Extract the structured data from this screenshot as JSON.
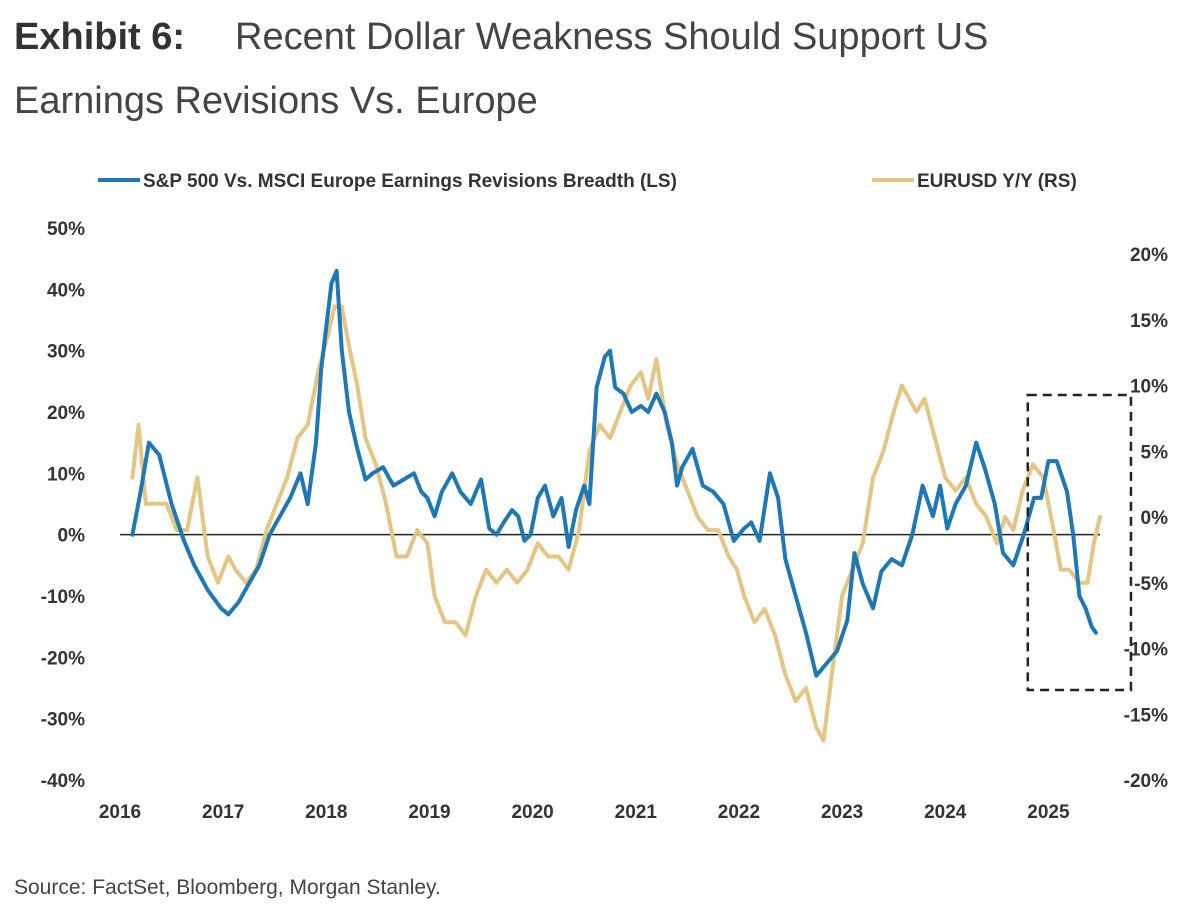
{
  "header": {
    "exhibit_label": "Exhibit 6:",
    "title_line1": "Recent Dollar Weakness Should Support US",
    "title_line2": "Earnings Revisions Vs. Europe"
  },
  "source_note": "Source: FactSet, Bloomberg, Morgan Stanley.",
  "chart_data": {
    "type": "line",
    "legend_position": "top",
    "grid": false,
    "x_ticks": [
      "2016",
      "2017",
      "2018",
      "2019",
      "2020",
      "2021",
      "2022",
      "2023",
      "2024",
      "2025"
    ],
    "xlim": [
      2016.0,
      2025.5
    ],
    "y_left": {
      "ticks": [
        "50%",
        "40%",
        "30%",
        "20%",
        "10%",
        "0%",
        "-10%",
        "-20%",
        "-30%",
        "-40%"
      ],
      "ylim": [
        -40,
        50
      ]
    },
    "y_right": {
      "ticks": [
        "20%",
        "15%",
        "10%",
        "5%",
        "0%",
        "-5%",
        "-10%",
        "-15%",
        "-20%"
      ],
      "ylim": [
        -20,
        20
      ]
    },
    "annotation": "dashed box highlighting 2024.8 to 2025.3",
    "series": [
      {
        "name": "S&P 500 Vs. MSCI Europe Earnings Revisions Breadth (LS)",
        "axis": "left",
        "color": "#1f78b4",
        "points": [
          [
            2016.12,
            0
          ],
          [
            2016.2,
            7
          ],
          [
            2016.28,
            15
          ],
          [
            2016.38,
            13
          ],
          [
            2016.5,
            5
          ],
          [
            2016.62,
            -1
          ],
          [
            2016.72,
            -5
          ],
          [
            2016.85,
            -9
          ],
          [
            2016.98,
            -12
          ],
          [
            2017.05,
            -13
          ],
          [
            2017.15,
            -11
          ],
          [
            2017.25,
            -8
          ],
          [
            2017.35,
            -5
          ],
          [
            2017.45,
            0
          ],
          [
            2017.55,
            3
          ],
          [
            2017.65,
            6
          ],
          [
            2017.75,
            10
          ],
          [
            2017.82,
            5
          ],
          [
            2017.9,
            15
          ],
          [
            2017.95,
            27
          ],
          [
            2018.05,
            41
          ],
          [
            2018.1,
            43
          ],
          [
            2018.15,
            30
          ],
          [
            2018.22,
            20
          ],
          [
            2018.3,
            14
          ],
          [
            2018.38,
            9
          ],
          [
            2018.45,
            10
          ],
          [
            2018.55,
            11
          ],
          [
            2018.65,
            8
          ],
          [
            2018.75,
            9
          ],
          [
            2018.85,
            10
          ],
          [
            2018.92,
            7
          ],
          [
            2018.98,
            6
          ],
          [
            2019.05,
            3
          ],
          [
            2019.12,
            7
          ],
          [
            2019.22,
            10
          ],
          [
            2019.3,
            7
          ],
          [
            2019.4,
            5
          ],
          [
            2019.5,
            9
          ],
          [
            2019.58,
            1
          ],
          [
            2019.65,
            0
          ],
          [
            2019.72,
            2
          ],
          [
            2019.8,
            4
          ],
          [
            2019.86,
            3
          ],
          [
            2019.92,
            -1
          ],
          [
            2019.98,
            0
          ],
          [
            2020.05,
            6
          ],
          [
            2020.12,
            8
          ],
          [
            2020.2,
            3
          ],
          [
            2020.28,
            6
          ],
          [
            2020.35,
            -2
          ],
          [
            2020.42,
            4
          ],
          [
            2020.5,
            8
          ],
          [
            2020.55,
            5
          ],
          [
            2020.62,
            24
          ],
          [
            2020.7,
            29
          ],
          [
            2020.75,
            30
          ],
          [
            2020.8,
            24
          ],
          [
            2020.88,
            23
          ],
          [
            2020.96,
            20
          ],
          [
            2021.05,
            21
          ],
          [
            2021.12,
            20
          ],
          [
            2021.2,
            23
          ],
          [
            2021.28,
            20
          ],
          [
            2021.35,
            15
          ],
          [
            2021.4,
            8
          ],
          [
            2021.45,
            11
          ],
          [
            2021.55,
            14
          ],
          [
            2021.65,
            8
          ],
          [
            2021.75,
            7
          ],
          [
            2021.85,
            5
          ],
          [
            2021.95,
            -1
          ],
          [
            2022.05,
            1
          ],
          [
            2022.12,
            2
          ],
          [
            2022.2,
            -1
          ],
          [
            2022.3,
            10
          ],
          [
            2022.38,
            6
          ],
          [
            2022.45,
            -4
          ],
          [
            2022.55,
            -10
          ],
          [
            2022.65,
            -16
          ],
          [
            2022.75,
            -23
          ],
          [
            2022.85,
            -21
          ],
          [
            2022.95,
            -19
          ],
          [
            2023.05,
            -14
          ],
          [
            2023.12,
            -3
          ],
          [
            2023.2,
            -8
          ],
          [
            2023.3,
            -12
          ],
          [
            2023.38,
            -6
          ],
          [
            2023.48,
            -4
          ],
          [
            2023.58,
            -5
          ],
          [
            2023.68,
            0
          ],
          [
            2023.78,
            8
          ],
          [
            2023.88,
            3
          ],
          [
            2023.95,
            8
          ],
          [
            2024.02,
            1
          ],
          [
            2024.1,
            5
          ],
          [
            2024.2,
            8
          ],
          [
            2024.3,
            15
          ],
          [
            2024.38,
            11
          ],
          [
            2024.48,
            5
          ],
          [
            2024.56,
            -3
          ],
          [
            2024.66,
            -5
          ],
          [
            2024.76,
            0
          ],
          [
            2024.86,
            6
          ],
          [
            2024.93,
            6
          ],
          [
            2025.0,
            12
          ],
          [
            2025.08,
            12
          ],
          [
            2025.18,
            7
          ],
          [
            2025.24,
            0
          ],
          [
            2025.3,
            -10
          ],
          [
            2025.36,
            -12
          ],
          [
            2025.42,
            -15
          ],
          [
            2025.46,
            -16
          ]
        ]
      },
      {
        "name": "EURUSD Y/Y (RS)",
        "axis": "right",
        "color": "#e3c585",
        "points": [
          [
            2016.12,
            3
          ],
          [
            2016.18,
            7
          ],
          [
            2016.25,
            1
          ],
          [
            2016.35,
            1
          ],
          [
            2016.45,
            1
          ],
          [
            2016.55,
            -1
          ],
          [
            2016.65,
            -1
          ],
          [
            2016.75,
            3
          ],
          [
            2016.85,
            -3
          ],
          [
            2016.95,
            -5
          ],
          [
            2017.05,
            -3
          ],
          [
            2017.12,
            -4
          ],
          [
            2017.22,
            -5
          ],
          [
            2017.32,
            -4
          ],
          [
            2017.42,
            -1
          ],
          [
            2017.52,
            1
          ],
          [
            2017.62,
            3
          ],
          [
            2017.72,
            6
          ],
          [
            2017.82,
            7
          ],
          [
            2017.92,
            11
          ],
          [
            2018.02,
            14
          ],
          [
            2018.08,
            16
          ],
          [
            2018.15,
            16
          ],
          [
            2018.22,
            13
          ],
          [
            2018.3,
            10
          ],
          [
            2018.38,
            6
          ],
          [
            2018.48,
            4
          ],
          [
            2018.58,
            1
          ],
          [
            2018.68,
            -3
          ],
          [
            2018.78,
            -3
          ],
          [
            2018.88,
            -1
          ],
          [
            2018.98,
            -2
          ],
          [
            2019.05,
            -6
          ],
          [
            2019.15,
            -8
          ],
          [
            2019.25,
            -8
          ],
          [
            2019.35,
            -9
          ],
          [
            2019.45,
            -6
          ],
          [
            2019.55,
            -4
          ],
          [
            2019.65,
            -5
          ],
          [
            2019.75,
            -4
          ],
          [
            2019.85,
            -5
          ],
          [
            2019.95,
            -4
          ],
          [
            2020.05,
            -2
          ],
          [
            2020.15,
            -3
          ],
          [
            2020.25,
            -3
          ],
          [
            2020.35,
            -4
          ],
          [
            2020.45,
            -1
          ],
          [
            2020.55,
            5
          ],
          [
            2020.65,
            7
          ],
          [
            2020.75,
            6
          ],
          [
            2020.85,
            8
          ],
          [
            2020.95,
            10
          ],
          [
            2021.05,
            11
          ],
          [
            2021.12,
            9
          ],
          [
            2021.2,
            12
          ],
          [
            2021.3,
            7
          ],
          [
            2021.4,
            4
          ],
          [
            2021.5,
            2
          ],
          [
            2021.6,
            0
          ],
          [
            2021.7,
            -1
          ],
          [
            2021.8,
            -1
          ],
          [
            2021.9,
            -3
          ],
          [
            2021.98,
            -4
          ],
          [
            2022.05,
            -6
          ],
          [
            2022.15,
            -8
          ],
          [
            2022.25,
            -7
          ],
          [
            2022.35,
            -9
          ],
          [
            2022.45,
            -12
          ],
          [
            2022.55,
            -14
          ],
          [
            2022.65,
            -13
          ],
          [
            2022.75,
            -16
          ],
          [
            2022.82,
            -17
          ],
          [
            2022.9,
            -12
          ],
          [
            2023.0,
            -6
          ],
          [
            2023.1,
            -4
          ],
          [
            2023.2,
            -2
          ],
          [
            2023.3,
            3
          ],
          [
            2023.4,
            5
          ],
          [
            2023.5,
            8
          ],
          [
            2023.58,
            10
          ],
          [
            2023.65,
            9
          ],
          [
            2023.72,
            8
          ],
          [
            2023.8,
            9
          ],
          [
            2023.9,
            6
          ],
          [
            2024.0,
            3
          ],
          [
            2024.1,
            2
          ],
          [
            2024.2,
            3
          ],
          [
            2024.3,
            1
          ],
          [
            2024.4,
            0
          ],
          [
            2024.5,
            -2
          ],
          [
            2024.58,
            0
          ],
          [
            2024.66,
            -1
          ],
          [
            2024.75,
            2
          ],
          [
            2024.85,
            4
          ],
          [
            2024.95,
            3
          ],
          [
            2025.05,
            -1
          ],
          [
            2025.12,
            -4
          ],
          [
            2025.2,
            -4
          ],
          [
            2025.3,
            -5
          ],
          [
            2025.38,
            -5
          ],
          [
            2025.44,
            -2
          ],
          [
            2025.5,
            0
          ]
        ]
      }
    ]
  }
}
